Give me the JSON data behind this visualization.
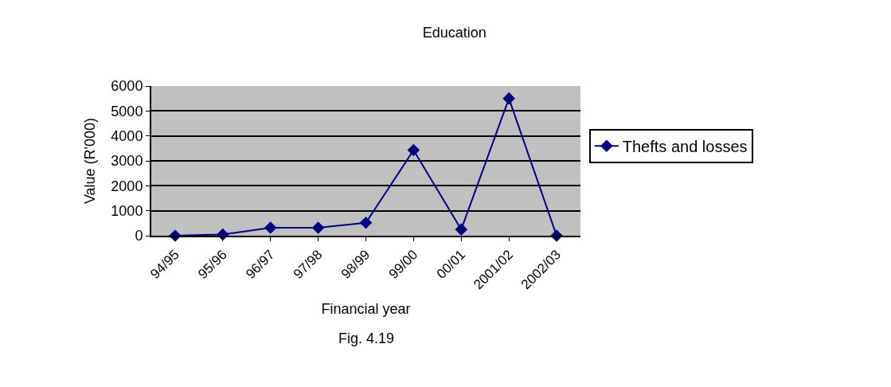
{
  "chart_data": {
    "type": "line",
    "title": "Education",
    "xlabel": "Financial year",
    "ylabel": "Value (R'000)",
    "categories": [
      "94/95",
      "95/96",
      "96/97",
      "97/98",
      "98/99",
      "99/00",
      "00/01",
      "2001/02",
      "2002/03"
    ],
    "series": [
      {
        "name": "Thefts and losses",
        "color": "#000080",
        "values": [
          0,
          50,
          320,
          320,
          520,
          3430,
          250,
          5500,
          0
        ]
      }
    ],
    "ylim": [
      0,
      6000
    ],
    "yticks": [
      0,
      1000,
      2000,
      3000,
      4000,
      5000,
      6000
    ],
    "annotations": [
      "Fig. 4.19"
    ],
    "grid": "y",
    "legend": "right",
    "marker": "diamond",
    "line_style": "solid"
  }
}
